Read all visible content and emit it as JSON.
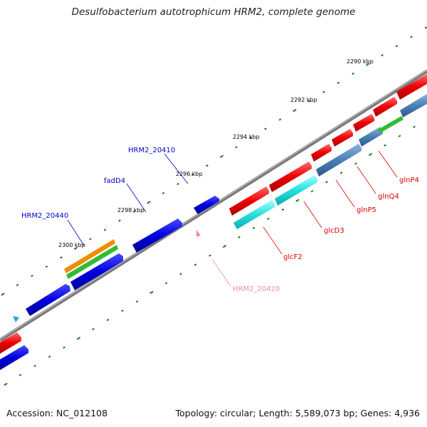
{
  "title": "Desulfobacterium autotrophicum HRM2, complete genome",
  "footer": {
    "accession": "Accession: NC_012108",
    "summary": "Topology: circular; Length: 5,589,073 bp; Genes: 4,936"
  },
  "scale_labels": [
    "2290 kbp",
    "2292 kbp",
    "2294 kbp",
    "2296 kbp",
    "2298 kbp",
    "2300 kbp"
  ],
  "gene_labels": {
    "upper": [
      {
        "name": "HRM2_20410",
        "color": "#0000cc"
      },
      {
        "name": "fadD4",
        "color": "#0000cc"
      },
      {
        "name": "HRM2_20440",
        "color": "#0000cc"
      }
    ],
    "lower": [
      {
        "name": "glnP4",
        "color": "#dd0000"
      },
      {
        "name": "glnQ4",
        "color": "#dd0000"
      },
      {
        "name": "glnP5",
        "color": "#dd0000"
      },
      {
        "name": "glcD3",
        "color": "#dd0000"
      },
      {
        "name": "glcF2",
        "color": "#dd0000"
      },
      {
        "name": "HRM2_20420",
        "color": "#ee88bb"
      }
    ]
  },
  "colors": {
    "backbone": "#808080",
    "forward_cds": "#0000dd",
    "reverse_cds": "#ee0000",
    "steelblue_cds": "#4a7fb5",
    "cyan_cds": "#22e0e0",
    "orange_cds": "#f08c00",
    "green_cds": "#33bb33",
    "ticks": "#1a7a1a"
  }
}
